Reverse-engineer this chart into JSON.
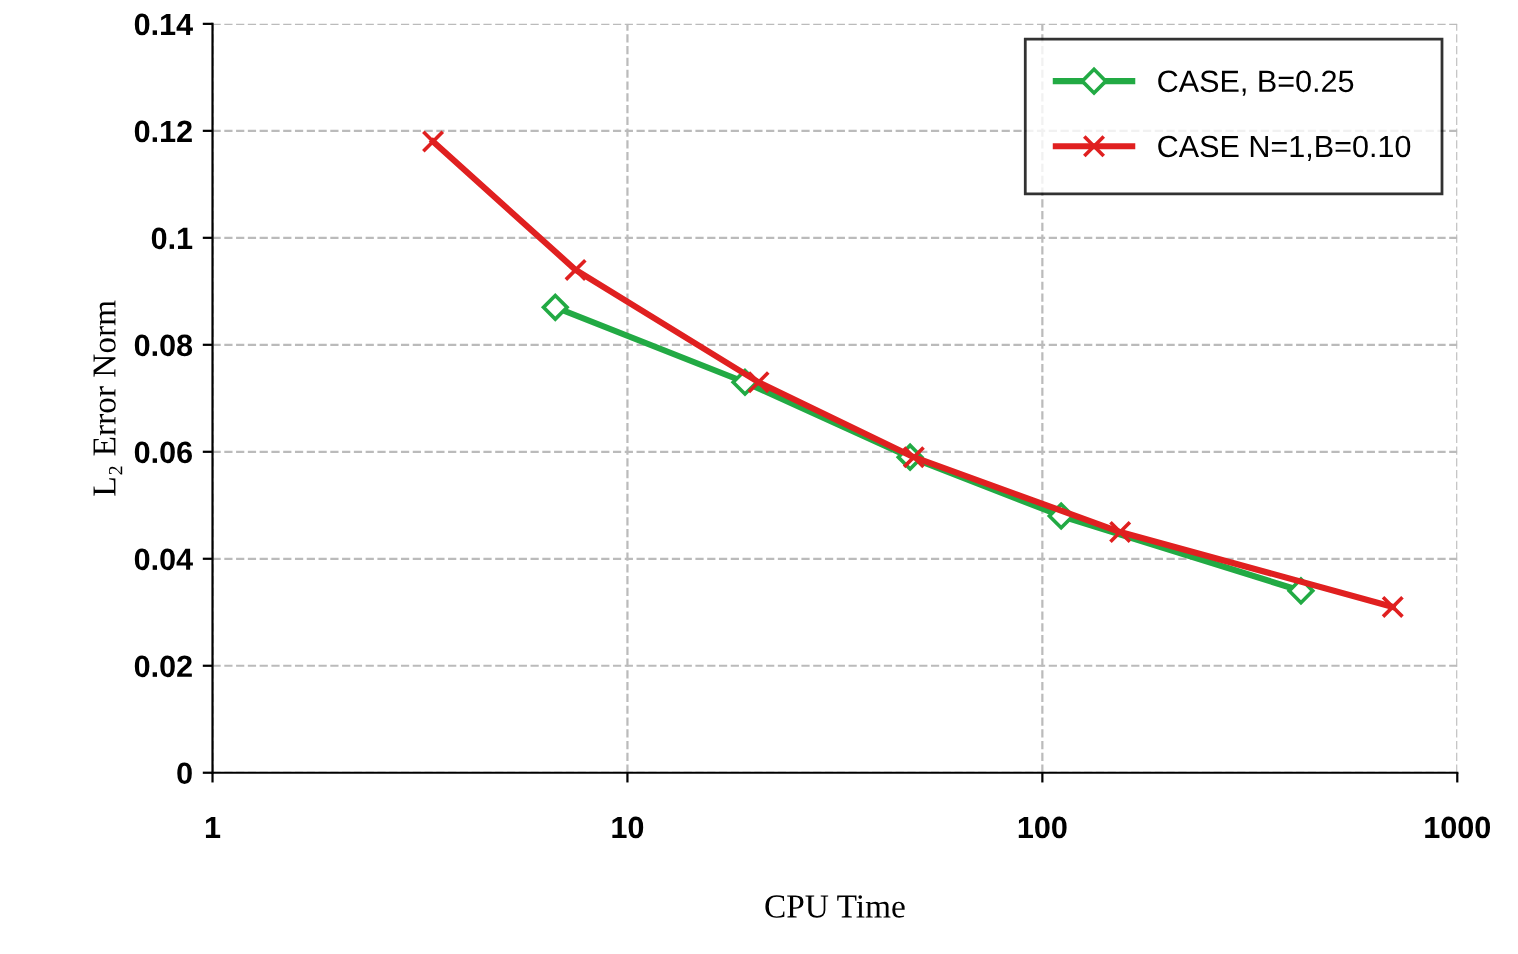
{
  "chart_data": {
    "type": "line",
    "xlabel": "CPU Time",
    "ylabel": "L₂ Error Norm",
    "log": "x",
    "xlim": [
      1,
      1000
    ],
    "xticks": [
      1,
      10,
      100,
      1000
    ],
    "ylim": [
      0,
      0.14
    ],
    "yticks": [
      0,
      0.02,
      0.04,
      0.06,
      0.08,
      0.1,
      0.12,
      0.14
    ],
    "grid": true,
    "legend": "top right",
    "series": [
      {
        "name": "CASE, B=0.25",
        "color": "#22aa44",
        "marker": "diamond",
        "x": [
          6.7,
          19.2,
          48,
          111,
          420
        ],
        "values": [
          0.087,
          0.073,
          0.059,
          0.048,
          0.034
        ]
      },
      {
        "name": "CASE N=1,B=0.10",
        "color": "#e02020",
        "marker": "cross",
        "x": [
          3.4,
          7.5,
          20.7,
          49,
          154,
          699
        ],
        "values": [
          0.118,
          0.094,
          0.073,
          0.059,
          0.045,
          0.031
        ]
      }
    ]
  }
}
